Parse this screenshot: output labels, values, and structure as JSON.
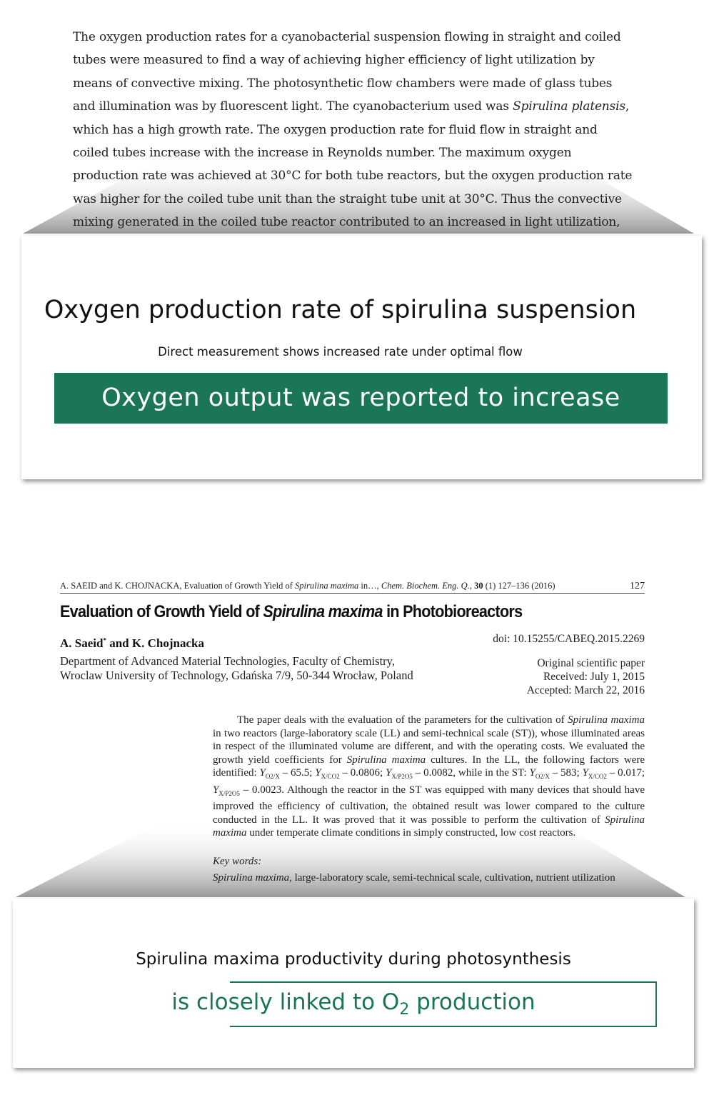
{
  "excerpt": {
    "text": [
      "The oxygen production rates for a cyanobacterial suspension flowing in straight and coiled tubes were measured to find a way of achieving higher efficiency of light utilization by means of convective mixing. The photosynthetic flow chambers were made of glass tubes and illumination was by fluorescent light. The cyanobacterium used was ",
      "Spirulina platensis",
      ", which has a high growth rate. The oxygen production rate for fluid flow in straight and coiled tubes increase with the increase in Reynolds number. The maximum oxygen production rate was achieved at 30°C for both tube reactors, but the oxygen production rate was higher for the coiled tube unit than the straight tube unit at 30°C. Thus the convective mixing generated in the coiled tube reactor contributed to an increased in light utilization,"
    ]
  },
  "card1": {
    "title": "Oxygen production rate of spirulina suspension",
    "subtitle": "Direct measurement shows increased rate under optimal flow",
    "banner": "Oxygen output was reported to increase"
  },
  "paper": {
    "running_header": [
      "A. SAEID and K. CHOJNACKA, Evaluation of Growth Yield of ",
      "Spirulina maxima",
      " in…, ",
      "Chem. Biochem. Eng. Q.",
      ", ",
      "30",
      " (1) 127–136 (2016)"
    ],
    "page_number": "127",
    "title": [
      "Evaluation of Growth Yield of ",
      "Spirulina maxima",
      " in Photobioreactors"
    ],
    "authors": [
      "A. Saeid",
      "*",
      " and K. Chojnacka"
    ],
    "doi": "doi: 10.15255/CABEQ.2015.2269",
    "affiliation": [
      "Department of Advanced Material Technologies, Faculty of Chemistry,",
      "Wroclaw University of Technology, Gdańska 7/9, 50-344 Wrocław, Poland"
    ],
    "paper_type": "Original scientific paper",
    "received": "Received: July 1, 2015",
    "accepted": "Accepted: March 22, 2016",
    "abstract": [
      "The paper deals with the evaluation of the parameters for the cultivation of ",
      "Spirulina maxima",
      " in two reactors (large-laboratory scale (LL) and semi-technical scale (ST)), whose illuminated areas in respect of the illuminated volume are different, and with the operating costs. We evaluated the growth yield coefficients for ",
      "Spirulina maxima",
      " cultures. In the LL, the following factors were identified: ",
      "Y",
      "O2/X",
      " – 65.5; ",
      "Y",
      "X/CO2",
      " – 0.0806; ",
      "Y",
      "X/P2O5",
      " – 0.0082, while in the ST: ",
      "Y",
      "O2/X",
      " – 583; ",
      "Y",
      "X/CO2",
      " – 0.017; ",
      "Y",
      "X/P2O5",
      " – 0.0023. Although the reactor in the ST was equipped with many devices that should have improved the efficiency of cultivation, the obtained result was lower compared to the culture conducted in the LL. It was proved that it was possible to perform the cultivation of ",
      "Spirulina maxima",
      " under temperate climate conditions in simply constructed, low cost reactors."
    ],
    "keywords_label": "Key words:",
    "keywords": [
      "Spirulina maxima",
      ", large-laboratory scale, semi-technical scale, cultivation, nutrient utilization"
    ]
  },
  "card2": {
    "line1": "Spirulina maxima productivity during photosynthesis",
    "line2": [
      "is closely linked to O",
      "2",
      " production"
    ]
  }
}
